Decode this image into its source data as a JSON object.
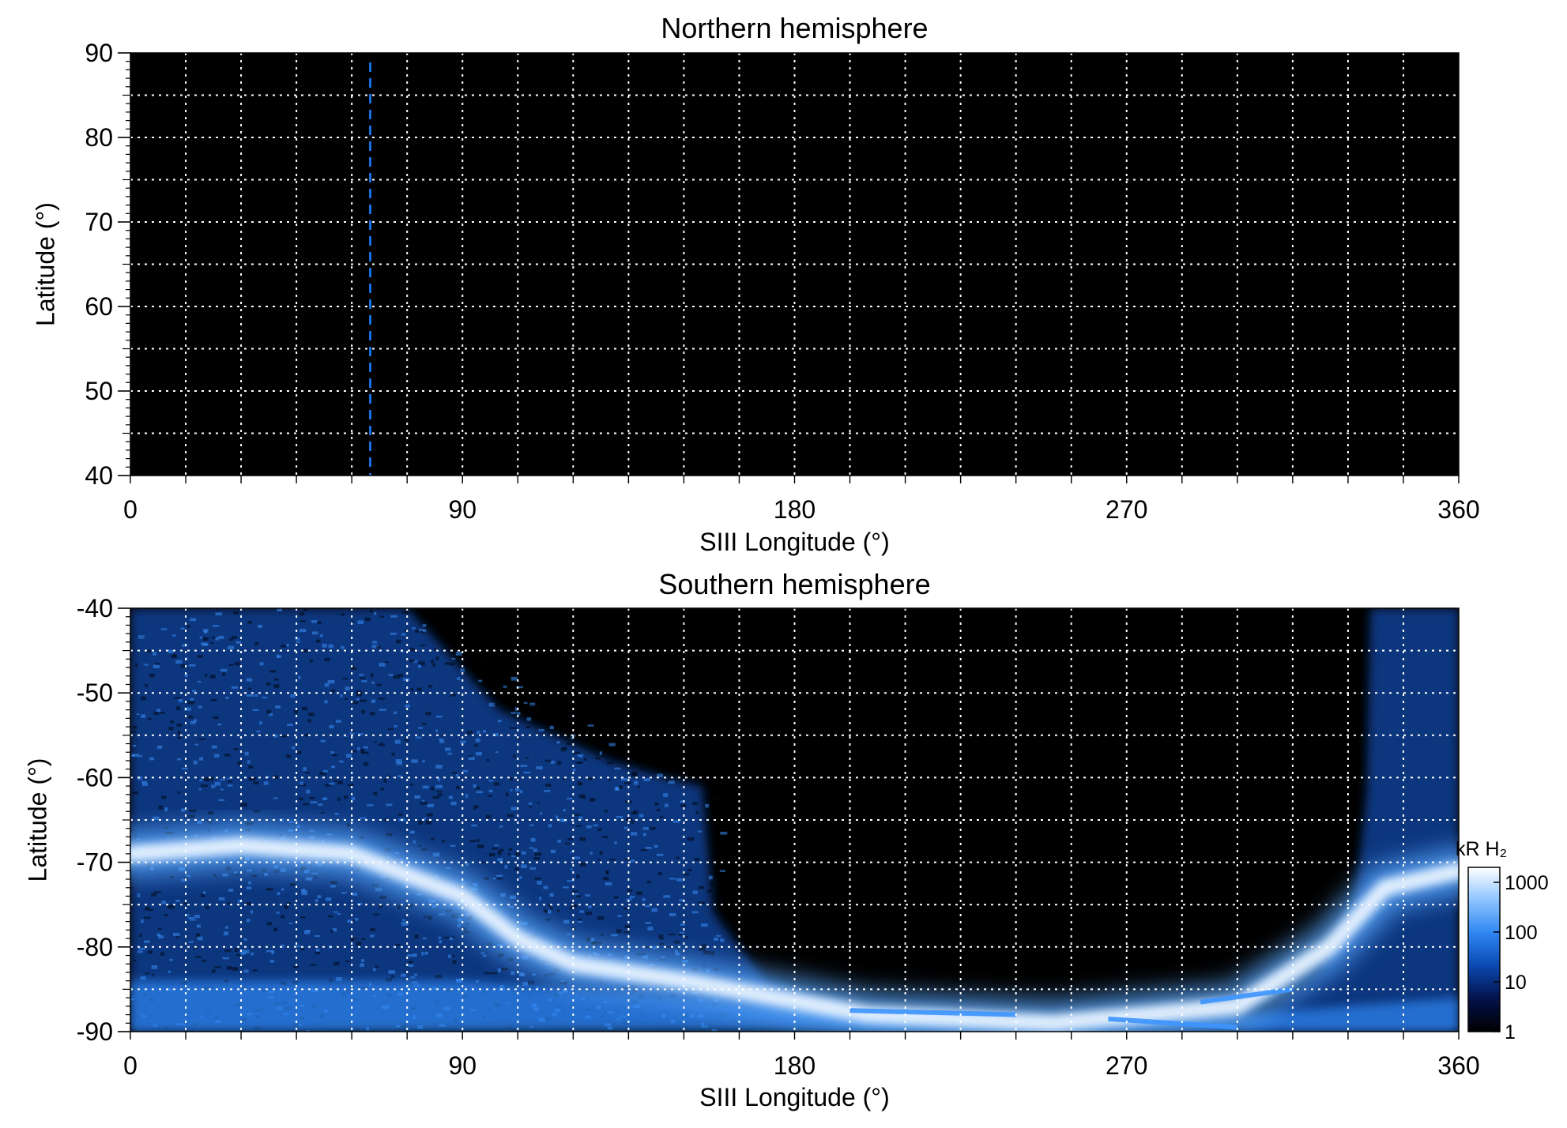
{
  "chart_data": [
    {
      "type": "heatmap",
      "title": "Northern hemisphere",
      "xlabel": "SIII Longitude (°)",
      "ylabel": "Latitude (°)",
      "xlim": [
        0,
        360
      ],
      "ylim": [
        40,
        90
      ],
      "xticks": [
        "0",
        "90",
        "180",
        "270",
        "360"
      ],
      "yticks": [
        "40",
        "50",
        "60",
        "70",
        "80",
        "90"
      ],
      "grid": true,
      "reference_line": {
        "x": 65,
        "color": "#1a6fe0",
        "style": "dashed"
      },
      "emission": "none"
    },
    {
      "type": "heatmap",
      "title": "Southern hemisphere",
      "xlabel": "SIII Longitude (°)",
      "ylabel": "Latitude (°)",
      "xlim": [
        0,
        360
      ],
      "ylim": [
        -90,
        -40
      ],
      "xticks": [
        "0",
        "90",
        "180",
        "270",
        "360"
      ],
      "yticks": [
        "-90",
        "-80",
        "-70",
        "-60",
        "-50",
        "-40"
      ],
      "grid": true,
      "main_oval": [
        {
          "lon": 0,
          "lat": -69
        },
        {
          "lon": 30,
          "lat": -68
        },
        {
          "lon": 60,
          "lat": -69
        },
        {
          "lon": 90,
          "lat": -74
        },
        {
          "lon": 105,
          "lat": -79
        },
        {
          "lon": 120,
          "lat": -82
        },
        {
          "lon": 150,
          "lat": -84
        },
        {
          "lon": 175,
          "lat": -86
        },
        {
          "lon": 200,
          "lat": -88
        },
        {
          "lon": 250,
          "lat": -89
        },
        {
          "lon": 300,
          "lat": -87
        },
        {
          "lon": 325,
          "lat": -80
        },
        {
          "lon": 340,
          "lat": -73
        },
        {
          "lon": 360,
          "lat": -71
        }
      ],
      "colorbar": {
        "label": "kR H₂",
        "scale": "log",
        "ticks": [
          "1",
          "10",
          "100",
          "1000"
        ],
        "range": [
          1,
          2000
        ],
        "colors": [
          "#000000",
          "#03124a",
          "#0b48b0",
          "#2f86f2",
          "#8cc4ff",
          "#ffffff"
        ]
      }
    }
  ]
}
